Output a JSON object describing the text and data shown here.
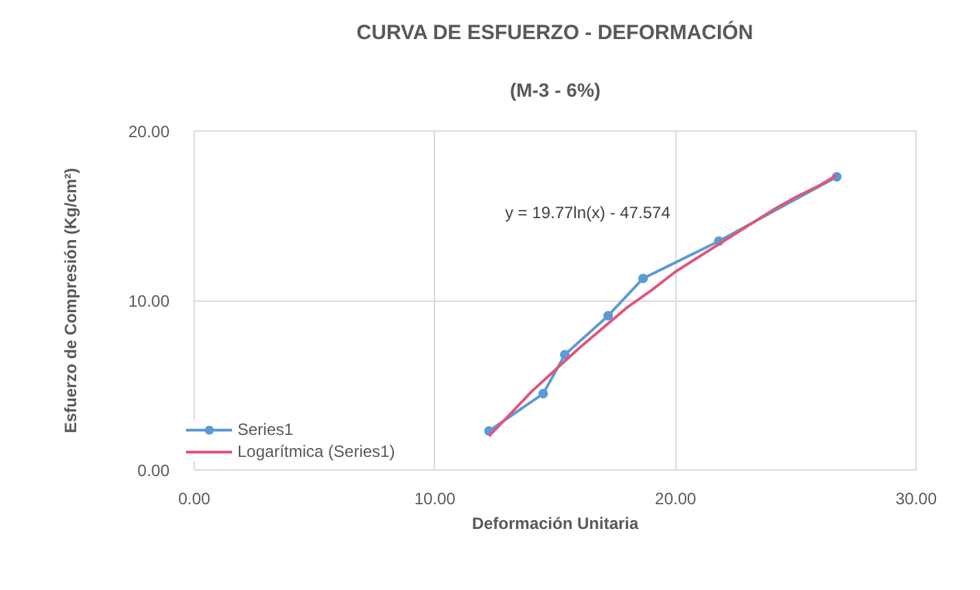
{
  "chart_data": {
    "type": "line",
    "title": "CURVA DE ESFUERZO - DEFORMACIÓN",
    "subtitle": "(M-3 - 6%)",
    "xlabel": "Deformación Unitaria",
    "ylabel": "Esfuerzo de Compresión (Kg/cm²)",
    "annotations": [
      "y = 19.77ln(x) - 47.574"
    ],
    "xlim": [
      0,
      30
    ],
    "ylim": [
      0,
      20
    ],
    "xticks": [
      {
        "value": 0,
        "label": "0.00"
      },
      {
        "value": 10,
        "label": "10.00"
      },
      {
        "value": 20,
        "label": "20.00"
      },
      {
        "value": 30,
        "label": "30.00"
      }
    ],
    "yticks": [
      {
        "value": 0,
        "label": "0.00"
      },
      {
        "value": 10,
        "label": "10.00"
      },
      {
        "value": 20,
        "label": "20.00"
      }
    ],
    "grid": true,
    "legend": "bottom left",
    "series": [
      {
        "name": "Series1",
        "color": "#5b9bd5",
        "marker": "circle",
        "x": [
          12.25,
          14.5,
          15.4,
          17.2,
          18.65,
          21.8,
          26.7
        ],
        "values": [
          2.3,
          4.5,
          6.8,
          9.1,
          11.3,
          13.5,
          17.3
        ]
      },
      {
        "name": "Logarítmica (Series1)",
        "color": "#e0557a",
        "marker": "none",
        "x": [
          12.25,
          13,
          14,
          15,
          16,
          17,
          18,
          19,
          20,
          21,
          22,
          23,
          24,
          25,
          26,
          26.7
        ],
        "values": [
          2.0,
          3.1,
          4.6,
          5.9,
          7.2,
          8.4,
          9.6,
          10.6,
          11.7,
          12.6,
          13.5,
          14.4,
          15.3,
          16.1,
          16.8,
          17.4
        ]
      }
    ]
  }
}
